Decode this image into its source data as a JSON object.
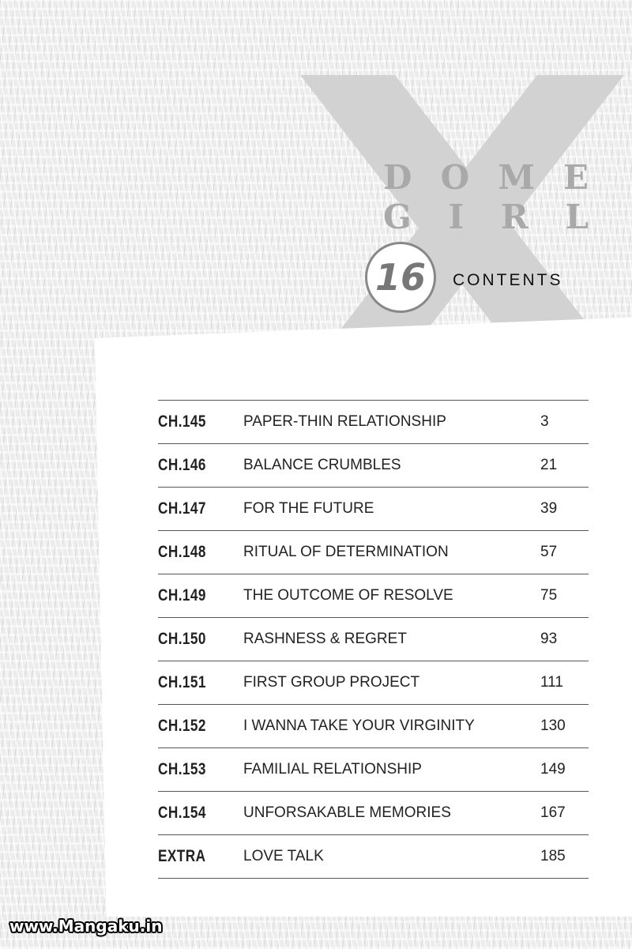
{
  "cover": {
    "title_line1": [
      "D",
      "O",
      "M",
      "E"
    ],
    "title_line2": [
      "G",
      "I",
      "R",
      "L"
    ],
    "volume": "16",
    "heading": "CONTENTS"
  },
  "toc": [
    {
      "chapter": "CH.145",
      "title": "PAPER-THIN RELATIONSHIP",
      "page": "3"
    },
    {
      "chapter": "CH.146",
      "title": "BALANCE CRUMBLES",
      "page": "21"
    },
    {
      "chapter": "CH.147",
      "title": "FOR THE FUTURE",
      "page": "39"
    },
    {
      "chapter": "CH.148",
      "title": "RITUAL OF DETERMINATION",
      "page": "57"
    },
    {
      "chapter": "CH.149",
      "title": "THE OUTCOME OF RESOLVE",
      "page": "75"
    },
    {
      "chapter": "CH.150",
      "title": "RASHNESS & REGRET",
      "page": "93"
    },
    {
      "chapter": "CH.151",
      "title": "FIRST GROUP PROJECT",
      "page": "111"
    },
    {
      "chapter": "CH.152",
      "title": "I WANNA TAKE YOUR VIRGINITY",
      "page": "130"
    },
    {
      "chapter": "CH.153",
      "title": "FAMILIAL RELATIONSHIP",
      "page": "149"
    },
    {
      "chapter": "CH.154",
      "title": "UNFORSAKABLE MEMORIES",
      "page": "167"
    },
    {
      "chapter": "EXTRA",
      "title": "LOVE TALK",
      "page": "185"
    }
  ],
  "watermark": "www.Mangaku.in",
  "colors": {
    "x_mark": "#cfcfcf",
    "title_gray": "#a9a9a9",
    "rule": "#555555"
  }
}
